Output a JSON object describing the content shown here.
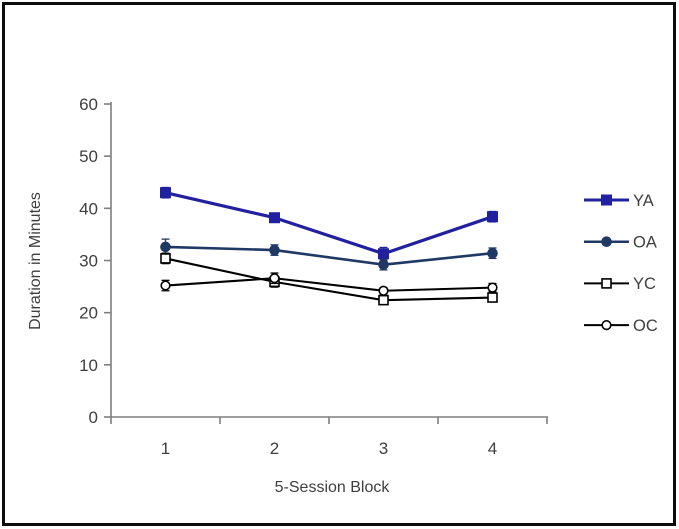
{
  "chart_data": {
    "type": "line",
    "title": "",
    "xlabel": "5-Session Block",
    "ylabel": "Duration in Minutes",
    "x_categories": [
      "1",
      "2",
      "3",
      "4"
    ],
    "ylim": [
      0,
      60
    ],
    "yticks": [
      0,
      10,
      20,
      30,
      40,
      50,
      60
    ],
    "grid": false,
    "legend_position": "right",
    "series": [
      {
        "name": "YA",
        "marker": "square",
        "marker_fill": "filled",
        "color": "#2121A0",
        "values": [
          43.0,
          38.2,
          31.3,
          38.4
        ],
        "errors": [
          1.0,
          0.8,
          1.2,
          1.0
        ]
      },
      {
        "name": "OA",
        "marker": "circle",
        "marker_fill": "filled",
        "color": "#1F3864",
        "values": [
          32.6,
          32.0,
          29.2,
          31.4
        ],
        "errors": [
          1.5,
          1.0,
          1.0,
          1.0
        ]
      },
      {
        "name": "YC",
        "marker": "square",
        "marker_fill": "open",
        "color": "#000000",
        "values": [
          30.4,
          25.9,
          22.4,
          22.9
        ],
        "errors": [
          1.0,
          1.0,
          0.8,
          0.8
        ]
      },
      {
        "name": "OC",
        "marker": "circle",
        "marker_fill": "open",
        "color": "#000000",
        "values": [
          25.2,
          26.6,
          24.2,
          24.8
        ],
        "errors": [
          1.0,
          1.0,
          0.6,
          0.8
        ]
      }
    ],
    "axis_color": "#7F7F7F",
    "text_color": "#3F3F3F",
    "background": "#FFFFFF",
    "frame_color": "#0D0D0D"
  }
}
